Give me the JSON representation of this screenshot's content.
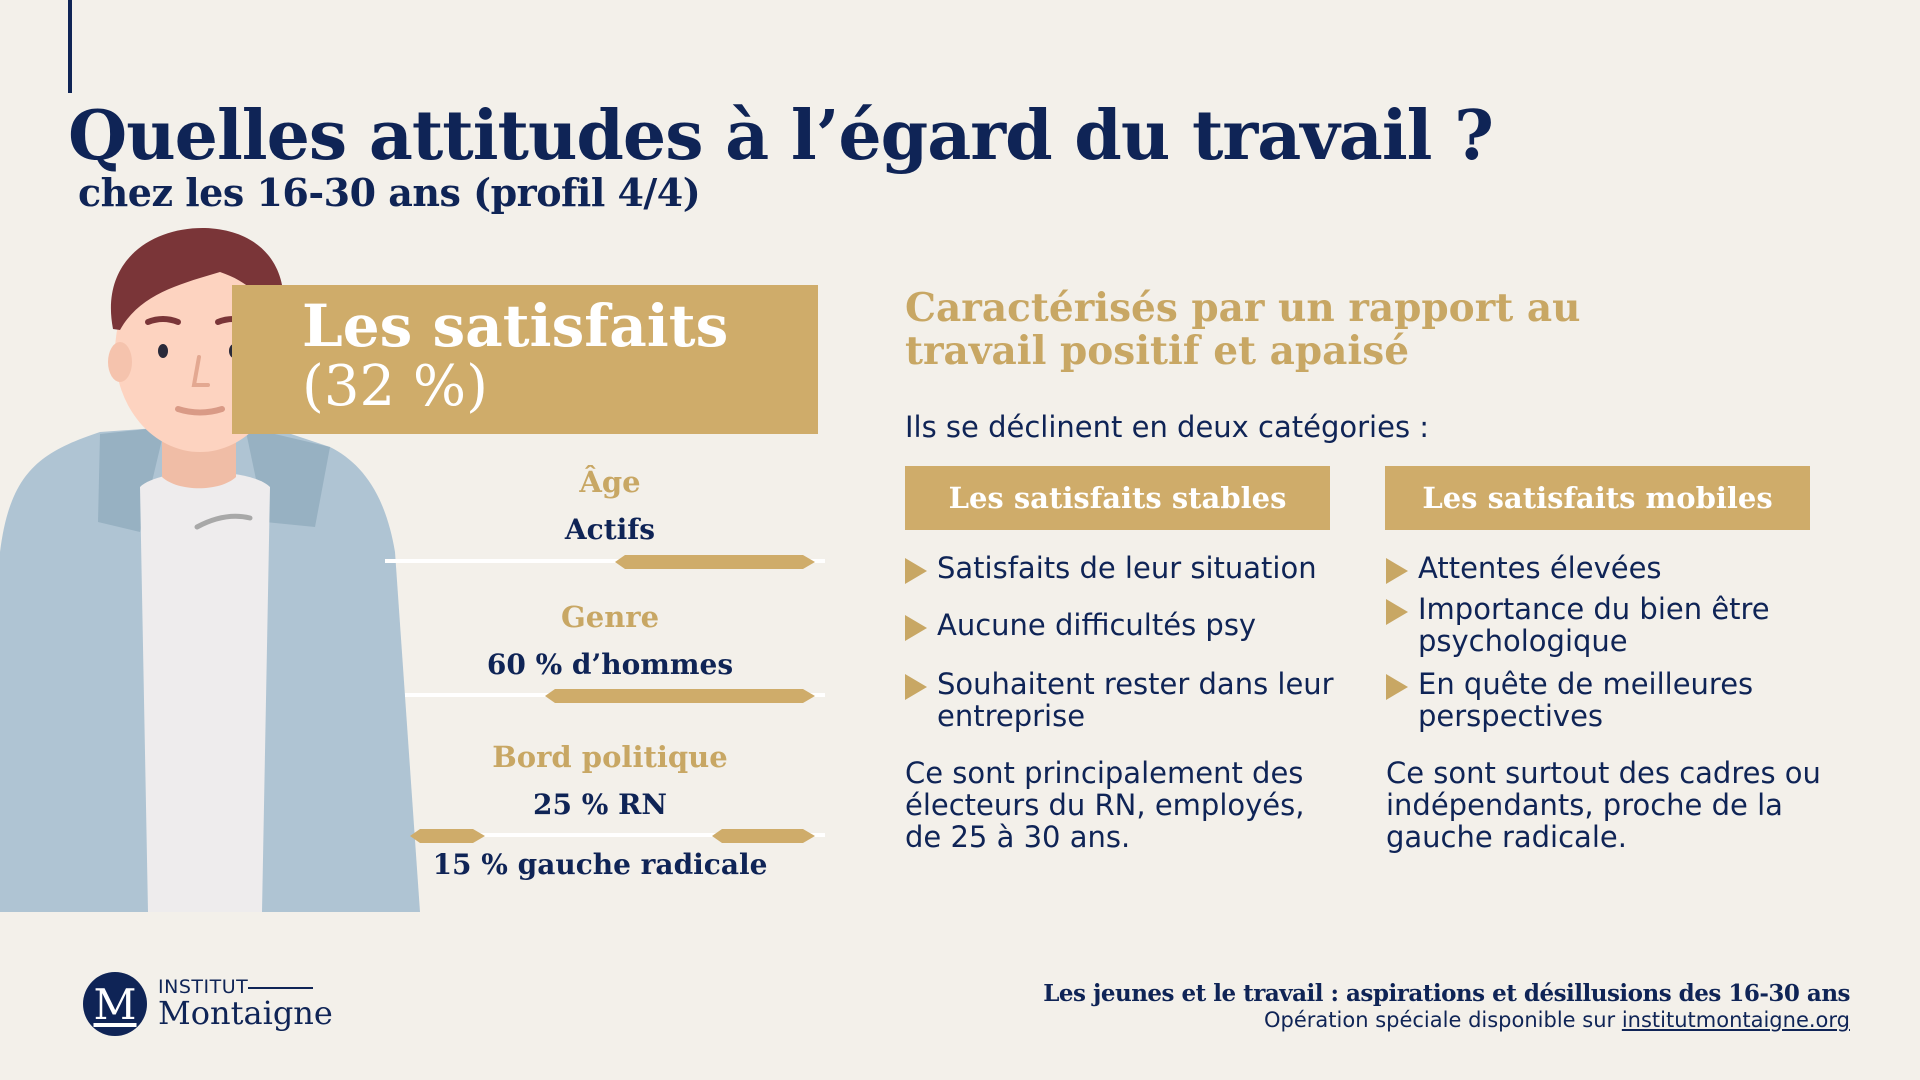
{
  "header": {
    "title": "Quelles attitudes à l’égard du travail ?",
    "subtitle": "chez les 16-30 ans (profil 4/4)"
  },
  "profile": {
    "name": "Les satisfaits",
    "share": "(32 %)"
  },
  "stats": [
    {
      "label": "Âge",
      "value": "Actifs"
    },
    {
      "label": "Genre",
      "value": "60 % d’hommes"
    },
    {
      "label": "Bord politique",
      "value": "25 % RN",
      "value2": "15 % gauche radicale"
    }
  ],
  "right": {
    "heading": "Caractérisés par un rapport au travail positif et apaisé",
    "intro": "Ils se déclinent en deux catégories :",
    "categories": [
      {
        "title": "Les satisfaits stables",
        "bullets": [
          "Satisfaits de leur situation",
          "Aucune difficultés psy",
          "Souhaitent rester dans leur entreprise"
        ],
        "summary": "Ce sont principalement des électeurs du RN, employés, de 25 à 30 ans."
      },
      {
        "title": "Les satisfaits mobiles",
        "bullets": [
          "Attentes élevées",
          "Importance du bien être psychologique",
          "En quête de meilleures perspectives"
        ],
        "summary": "Ce sont surtout des cadres ou indépendants, proche de la gauche radicale."
      }
    ]
  },
  "logo": {
    "initial": "M",
    "top": "INSTITUT",
    "name": "Montaigne"
  },
  "footer": {
    "title": "Les jeunes et le travail : aspirations et désillusions des 16-30 ans",
    "sub_prefix": "Opération spéciale disponible sur",
    "link": "institutmontaigne.org"
  },
  "colors": {
    "navy": "#0f2456",
    "gold": "#cfac6a",
    "background": "#f3f0ea",
    "jacket": "#afc4d3"
  }
}
